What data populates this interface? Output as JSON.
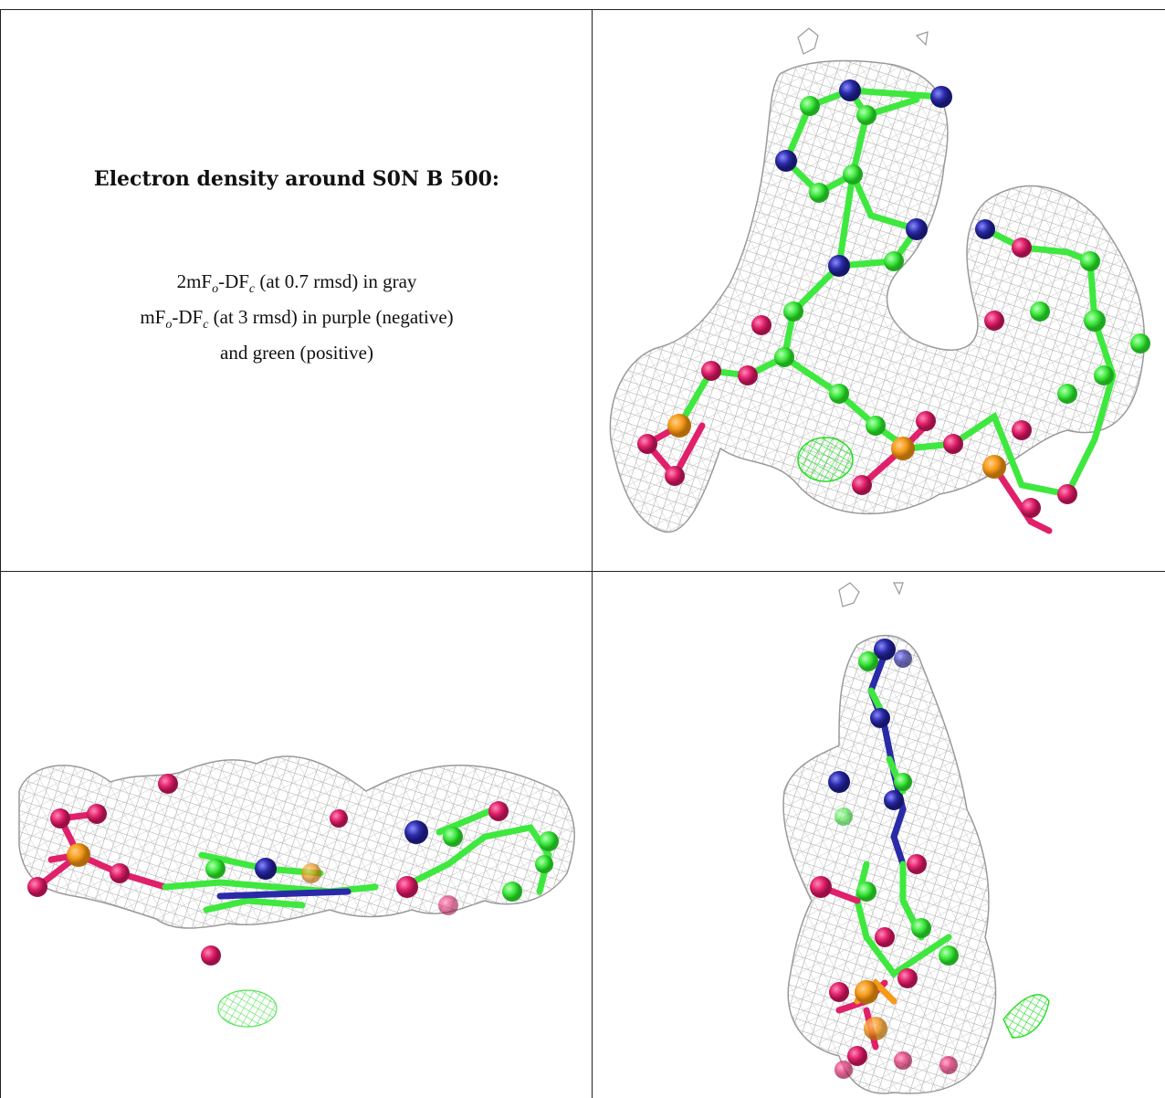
{
  "legend": {
    "title": "Electron density around S0N B 500:",
    "line1_prefix": "2mF",
    "line1_sub1": "o",
    "line1_mid": "-DF",
    "line1_sub2": "c",
    "line1_suffix": " (at 0.7 rmsd) in gray",
    "line2_prefix": "mF",
    "line2_sub1": "o",
    "line2_mid": "-DF",
    "line2_sub2": "c",
    "line2_suffix": " (at 3 rmsd) in purple (negative)",
    "line3": "and green (positive)"
  },
  "colors": {
    "mesh_gray": "#9a9a9a",
    "carbon": "#3ee83e",
    "nitrogen": "#2a2aa8",
    "oxygen": "#e0206a",
    "phosphorus": "#f59a1a",
    "positive_density": "#22dd22"
  }
}
